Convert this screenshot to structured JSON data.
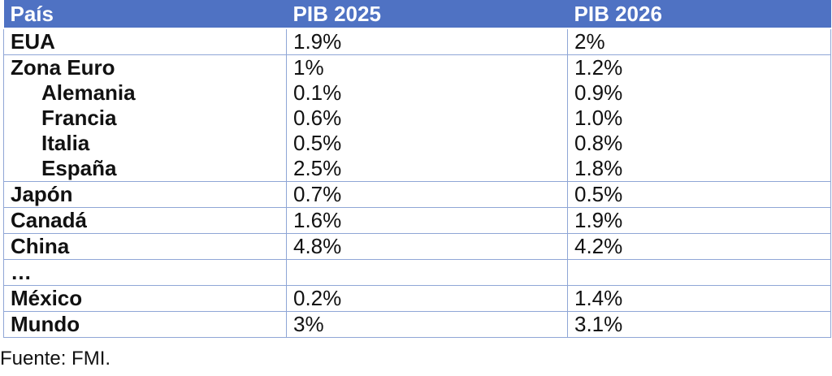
{
  "chart_data": {
    "type": "table",
    "columns": [
      "País",
      "PIB 2025",
      "PIB 2026"
    ],
    "rows": [
      {
        "country": "EUA",
        "pib2025": "1.9%",
        "pib2026": "2%",
        "indent": false
      },
      {
        "country": "Zona Euro",
        "pib2025": "1%",
        "pib2026": "1.2%",
        "indent": false
      },
      {
        "country": "Alemania",
        "pib2025": "0.1%",
        "pib2026": "0.9%",
        "indent": true
      },
      {
        "country": "Francia",
        "pib2025": "0.6%",
        "pib2026": "1.0%",
        "indent": true
      },
      {
        "country": "Italia",
        "pib2025": "0.5%",
        "pib2026": "0.8%",
        "indent": true
      },
      {
        "country": "España",
        "pib2025": "2.5%",
        "pib2026": "1.8%",
        "indent": true
      },
      {
        "country": "Japón",
        "pib2025": "0.7%",
        "pib2026": "0.5%",
        "indent": false
      },
      {
        "country": "Canadá",
        "pib2025": "1.6%",
        "pib2026": "1.9%",
        "indent": false
      },
      {
        "country": "China",
        "pib2025": "4.8%",
        "pib2026": "4.2%",
        "indent": false
      },
      {
        "country": "…",
        "pib2025": "",
        "pib2026": "",
        "indent": false
      },
      {
        "country": "México",
        "pib2025": "0.2%",
        "pib2026": "1.4%",
        "indent": false
      },
      {
        "country": "Mundo",
        "pib2025": "3%",
        "pib2026": "3.1%",
        "indent": false
      }
    ],
    "source": "Fuente: FMI.",
    "colors": {
      "header_bg": "#4f72c3",
      "header_text": "#ffffff",
      "border": "#8fa6d6"
    }
  }
}
